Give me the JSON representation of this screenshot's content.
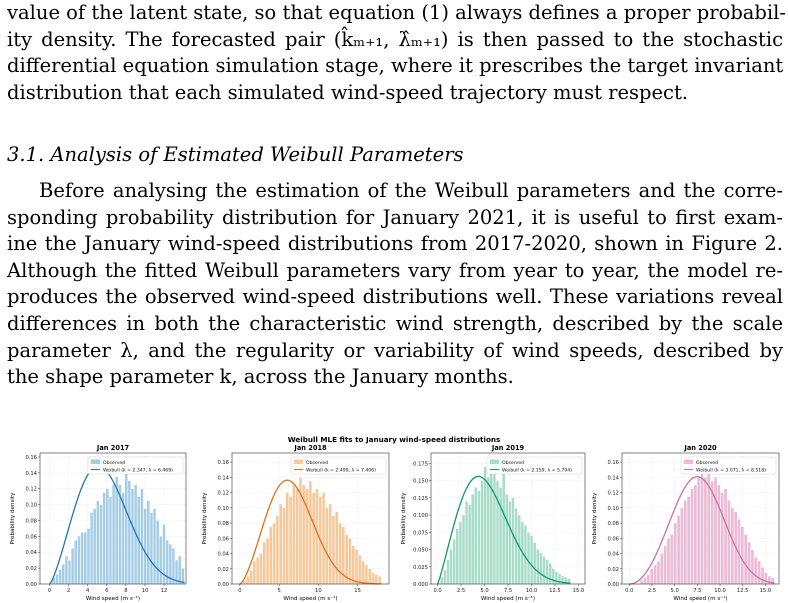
{
  "text": {
    "para1_lines": [
      "value of the latent state, so that equation (1) always defines a proper probabil-",
      "ity density. The forecasted pair (k̂ₘ₊₁, λ̂ₘ₊₁) is then passed to the stochastic",
      "differential equation simulation stage, where it prescribes the target invariant",
      "distribution that each simulated wind-speed trajectory must respect."
    ],
    "section_heading": "3.1. Analysis of Estimated Weibull Parameters",
    "para2_lines": [
      "Before analysing the estimation of the Weibull parameters and the corre-",
      "sponding probability distribution for January 2021, it is useful to first exam-",
      "ine the January wind-speed distributions from 2017-2020, shown in Figure 2.",
      "Although the fitted Weibull parameters vary from year to year, the model re-",
      "produces the observed wind-speed distributions well. These variations reveal",
      "differences in both the characteristic wind strength, described by the scale",
      "parameter λ, and the regularity or variability of wind speeds, described by",
      "the shape parameter k, across the January months."
    ]
  },
  "figure": {
    "suptitle": "Weibull MLE fits to January wind-speed distributions"
  },
  "chart_data": [
    {
      "type": "bar",
      "title": "Jan 2017",
      "xlabel": "Wind speed (m s⁻¹)",
      "ylabel": "Probability density",
      "xlim": [
        -1,
        14.3
      ],
      "ylim": [
        0,
        0.165
      ],
      "xticks": [
        0,
        2,
        4,
        6,
        8,
        10,
        12
      ],
      "yticks": [
        0.0,
        0.02,
        0.04,
        0.06,
        0.08,
        0.1,
        0.12,
        0.14,
        0.16
      ],
      "ytick_labels": [
        "0.00",
        "0.02",
        "0.04",
        "0.06",
        "0.08",
        "0.10",
        "0.12",
        "0.14",
        "0.16"
      ],
      "bar_color": "#a6cde6",
      "line_color": "#1f77b4",
      "legend": [
        "Observed",
        "Weibull  (k = 2.347, λ = 6.469)"
      ],
      "weibull": {
        "k": 2.347,
        "lambda": 6.469
      },
      "hist": {
        "x_start": 0.3,
        "bin_width": 0.33,
        "values": [
          0.008,
          0.012,
          0.018,
          0.025,
          0.035,
          0.03,
          0.045,
          0.055,
          0.06,
          0.065,
          0.065,
          0.07,
          0.09,
          0.095,
          0.105,
          0.1,
          0.115,
          0.12,
          0.11,
          0.125,
          0.135,
          0.125,
          0.115,
          0.14,
          0.13,
          0.12,
          0.125,
          0.11,
          0.12,
          0.095,
          0.105,
          0.09,
          0.095,
          0.08,
          0.06,
          0.075,
          0.055,
          0.05,
          0.045,
          0.03,
          0.035,
          0.02
        ]
      }
    },
    {
      "type": "bar",
      "title": "Jan 2018",
      "xlabel": "Wind speed (m s⁻¹)",
      "ylabel": "Probability density",
      "xlim": [
        -1,
        19
      ],
      "ylim": [
        0,
        0.172
      ],
      "xticks": [
        0,
        5,
        10,
        15
      ],
      "yticks": [
        0.0,
        0.02,
        0.04,
        0.06,
        0.08,
        0.1,
        0.12,
        0.14,
        0.16
      ],
      "ytick_labels": [
        "0.00",
        "0.02",
        "0.04",
        "0.06",
        "0.08",
        "0.10",
        "0.12",
        "0.14",
        "0.16"
      ],
      "bar_color": "#f6c99d",
      "line_color": "#e0711a",
      "legend": [
        "Observed",
        "Weibull  (k = 2.499, λ = 7.406)"
      ],
      "weibull": {
        "k": 2.499,
        "lambda": 7.406
      },
      "hist": {
        "x_start": 0.4,
        "bin_width": 0.42,
        "values": [
          0.005,
          0.01,
          0.018,
          0.03,
          0.035,
          0.04,
          0.055,
          0.06,
          0.075,
          0.08,
          0.09,
          0.105,
          0.1,
          0.12,
          0.115,
          0.13,
          0.125,
          0.14,
          0.13,
          0.125,
          0.135,
          0.12,
          0.125,
          0.115,
          0.12,
          0.1,
          0.105,
          0.09,
          0.095,
          0.08,
          0.075,
          0.065,
          0.06,
          0.05,
          0.045,
          0.038,
          0.03,
          0.025,
          0.02,
          0.015,
          0.012,
          0.01
        ]
      }
    },
    {
      "type": "bar",
      "title": "Jan 2019",
      "xlabel": "Wind speed (m s⁻¹)",
      "ylabel": "Probability density",
      "xlim": [
        -0.7,
        15.7
      ],
      "ylim": [
        0,
        0.19
      ],
      "xticks": [
        0.0,
        2.5,
        5.0,
        7.5,
        10.0,
        12.5,
        15.0
      ],
      "yticks": [
        0.0,
        0.025,
        0.05,
        0.075,
        0.1,
        0.125,
        0.15,
        0.175
      ],
      "ytick_labels": [
        "0.000",
        "0.025",
        "0.050",
        "0.075",
        "0.100",
        "0.125",
        "0.150",
        "0.175"
      ],
      "bar_color": "#a6dcc8",
      "line_color": "#119a6c",
      "legend": [
        "Observed",
        "Weibull  (k = 2.159, λ = 5.794)"
      ],
      "weibull": {
        "k": 2.159,
        "lambda": 5.794
      },
      "hist": {
        "x_start": 0.3,
        "bin_width": 0.33,
        "values": [
          0.01,
          0.02,
          0.035,
          0.05,
          0.065,
          0.08,
          0.09,
          0.1,
          0.12,
          0.115,
          0.13,
          0.14,
          0.135,
          0.15,
          0.17,
          0.155,
          0.16,
          0.175,
          0.15,
          0.14,
          0.16,
          0.13,
          0.12,
          0.125,
          0.11,
          0.1,
          0.09,
          0.085,
          0.075,
          0.07,
          0.06,
          0.05,
          0.045,
          0.04,
          0.035,
          0.03,
          0.022,
          0.018,
          0.015,
          0.012,
          0.01,
          0.008
        ]
      }
    },
    {
      "type": "bar",
      "title": "Jan 2020",
      "xlabel": "Wind speed (m s⁻¹)",
      "ylabel": "Probability density",
      "xlim": [
        -0.8,
        16.5
      ],
      "ylim": [
        0,
        0.172
      ],
      "xticks": [
        0.0,
        2.5,
        5.0,
        7.5,
        10.0,
        12.5,
        15.0
      ],
      "yticks": [
        0.0,
        0.02,
        0.04,
        0.06,
        0.08,
        0.1,
        0.12,
        0.14,
        0.16
      ],
      "ytick_labels": [
        "0.00",
        "0.02",
        "0.04",
        "0.06",
        "0.08",
        "0.10",
        "0.12",
        "0.14",
        "0.16"
      ],
      "bar_color": "#ebbcd5",
      "line_color": "#cf6fa2",
      "legend": [
        "Observed",
        "Weibull  (k = 3.071, λ = 8.518)"
      ],
      "weibull": {
        "k": 3.071,
        "lambda": 8.518
      },
      "hist": {
        "x_start": 1.2,
        "bin_width": 0.37,
        "values": [
          0.005,
          0.008,
          0.012,
          0.02,
          0.025,
          0.03,
          0.04,
          0.05,
          0.06,
          0.065,
          0.08,
          0.09,
          0.1,
          0.11,
          0.115,
          0.125,
          0.13,
          0.14,
          0.145,
          0.14,
          0.15,
          0.135,
          0.14,
          0.13,
          0.12,
          0.125,
          0.11,
          0.1,
          0.095,
          0.085,
          0.075,
          0.065,
          0.055,
          0.045,
          0.035,
          0.03,
          0.022,
          0.015,
          0.01,
          0.008
        ]
      }
    }
  ]
}
